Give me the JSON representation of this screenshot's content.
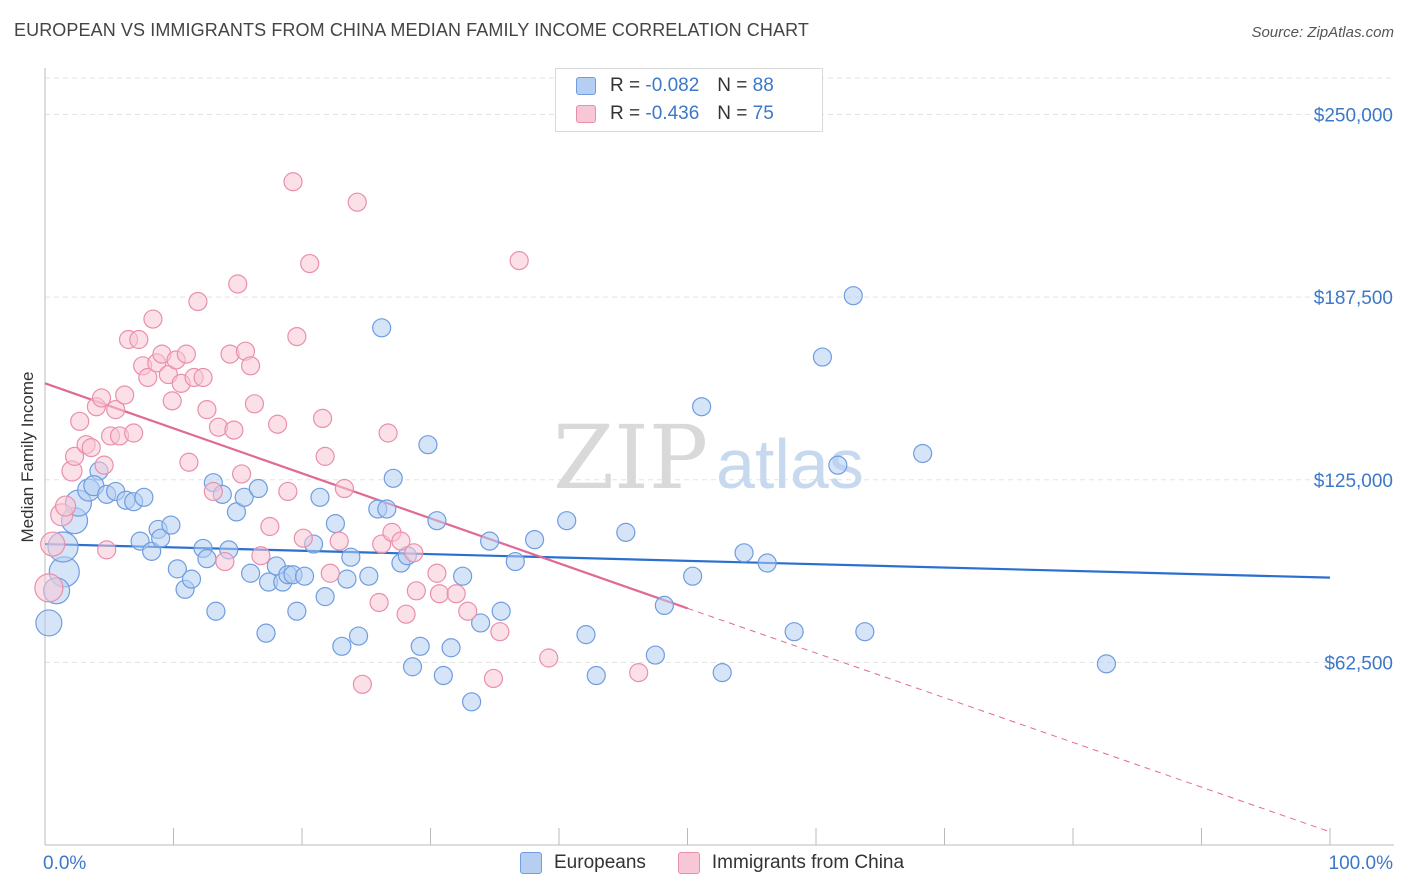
{
  "title": "EUROPEAN VS IMMIGRANTS FROM CHINA MEDIAN FAMILY INCOME CORRELATION CHART",
  "source": "Source: ZipAtlas.com",
  "watermark": {
    "zip": "ZIP",
    "atlas": "atlas"
  },
  "colors": {
    "blue": "#3c78c8",
    "blue_fill": "#b5cef2",
    "blue_stroke": "#6f9de0",
    "blue_line": "#2b6fcf",
    "pink": "#e2608f",
    "pink_fill": "#f8c7d6",
    "pink_stroke": "#ea8fab",
    "pink_line": "#e06a95",
    "grid": "#e3e3e3"
  },
  "legend": {
    "rows": [
      {
        "r_label": "R =",
        "r_value": "-0.082",
        "n_label": "N =",
        "n_value": "88"
      },
      {
        "r_label": "R =",
        "r_value": "-0.436",
        "n_label": "N =",
        "n_value": "75"
      }
    ]
  },
  "bottom_legend": {
    "europeans": "Europeans",
    "china": "Immigrants from China"
  },
  "chart_data": {
    "type": "scatter",
    "title": "EUROPEAN VS IMMIGRANTS FROM CHINA MEDIAN FAMILY INCOME CORRELATION CHART",
    "xlabel": "",
    "ylabel": "Median Family Income",
    "xlim": [
      0,
      100
    ],
    "ylim": [
      0,
      262500
    ],
    "x_tick_labels": [
      "0.0%",
      "100.0%"
    ],
    "y_ticks": [
      62500,
      125000,
      187500,
      250000
    ],
    "y_tick_labels": [
      "$62,500",
      "$125,000",
      "$187,500",
      "$250,000"
    ],
    "grid": true,
    "series": [
      {
        "name": "Europeans",
        "r": -0.082,
        "n": 88,
        "trend": {
          "x": [
            0,
            100
          ],
          "y": [
            103000,
            91500
          ],
          "dashed_from": 100
        },
        "points": [
          [
            0.3,
            76000,
            13
          ],
          [
            1.5,
            93500,
            15
          ],
          [
            1.4,
            102000,
            15
          ],
          [
            0.9,
            87000,
            13
          ],
          [
            2.3,
            111000,
            13
          ],
          [
            2.6,
            117000,
            13
          ],
          [
            3.4,
            121500,
            11
          ],
          [
            4.2,
            128000,
            9
          ],
          [
            3.8,
            123000,
            10
          ],
          [
            4.8,
            120000,
            9
          ],
          [
            5.5,
            121000,
            9
          ],
          [
            6.3,
            118000,
            9
          ],
          [
            6.9,
            117500,
            9
          ],
          [
            7.7,
            119000,
            9
          ],
          [
            7.4,
            104000,
            9
          ],
          [
            8.3,
            100500,
            9
          ],
          [
            8.8,
            108000,
            9
          ],
          [
            9.0,
            105000,
            9
          ],
          [
            9.8,
            109500,
            9
          ],
          [
            10.3,
            94500,
            9
          ],
          [
            10.9,
            87500,
            9
          ],
          [
            11.4,
            91000,
            9
          ],
          [
            12.3,
            101500,
            9
          ],
          [
            12.6,
            98000,
            9
          ],
          [
            13.1,
            124000,
            9
          ],
          [
            13.3,
            80000,
            9
          ],
          [
            13.8,
            120000,
            9
          ],
          [
            14.3,
            101000,
            9
          ],
          [
            14.9,
            114000,
            9
          ],
          [
            15.5,
            119000,
            9
          ],
          [
            16.0,
            93000,
            9
          ],
          [
            16.6,
            122000,
            9
          ],
          [
            17.2,
            72500,
            9
          ],
          [
            17.4,
            90000,
            9
          ],
          [
            18.0,
            95500,
            9
          ],
          [
            18.5,
            90000,
            9
          ],
          [
            18.9,
            92500,
            9
          ],
          [
            19.3,
            92500,
            9
          ],
          [
            19.6,
            80000,
            9
          ],
          [
            20.2,
            92000,
            9
          ],
          [
            20.9,
            103000,
            9
          ],
          [
            21.4,
            119000,
            9
          ],
          [
            21.8,
            85000,
            9
          ],
          [
            22.6,
            110000,
            9
          ],
          [
            23.1,
            68000,
            9
          ],
          [
            23.5,
            91000,
            9
          ],
          [
            23.8,
            98500,
            9
          ],
          [
            24.4,
            71500,
            9
          ],
          [
            25.2,
            92000,
            9
          ],
          [
            25.9,
            115000,
            9
          ],
          [
            26.2,
            177000,
            9
          ],
          [
            26.6,
            115000,
            9
          ],
          [
            27.1,
            125500,
            9
          ],
          [
            27.7,
            96500,
            9
          ],
          [
            28.2,
            99000,
            9
          ],
          [
            28.6,
            61000,
            9
          ],
          [
            29.2,
            68000,
            9
          ],
          [
            29.8,
            137000,
            9
          ],
          [
            30.5,
            111000,
            9
          ],
          [
            31.0,
            58000,
            9
          ],
          [
            31.6,
            67500,
            9
          ],
          [
            32.5,
            92000,
            9
          ],
          [
            33.2,
            49000,
            9
          ],
          [
            33.9,
            76000,
            9
          ],
          [
            34.6,
            104000,
            9
          ],
          [
            35.5,
            80000,
            9
          ],
          [
            36.6,
            97000,
            9
          ],
          [
            38.1,
            104500,
            9
          ],
          [
            40.6,
            111000,
            9
          ],
          [
            42.1,
            72000,
            9
          ],
          [
            42.9,
            58000,
            9
          ],
          [
            45.2,
            107000,
            9
          ],
          [
            47.5,
            65000,
            9
          ],
          [
            48.2,
            82000,
            9
          ],
          [
            50.4,
            92000,
            9
          ],
          [
            51.1,
            150000,
            9
          ],
          [
            52.7,
            59000,
            9
          ],
          [
            54.4,
            100000,
            9
          ],
          [
            56.2,
            96500,
            9
          ],
          [
            58.3,
            73000,
            9
          ],
          [
            60.5,
            167000,
            9
          ],
          [
            61.7,
            130000,
            9
          ],
          [
            62.9,
            188000,
            9
          ],
          [
            63.8,
            73000,
            9
          ],
          [
            68.3,
            134000,
            9
          ],
          [
            82.6,
            62000,
            9
          ]
        ]
      },
      {
        "name": "Immigrants from China",
        "r": -0.436,
        "n": 75,
        "trend": {
          "x": [
            0,
            50
          ],
          "y": [
            158000,
            81000
          ],
          "dashed_to": [
            100,
            4500
          ]
        },
        "points": [
          [
            0.3,
            88000,
            14
          ],
          [
            0.6,
            103000,
            12
          ],
          [
            1.3,
            113000,
            11
          ],
          [
            1.6,
            116000,
            10
          ],
          [
            2.1,
            128000,
            10
          ],
          [
            2.3,
            133000,
            9
          ],
          [
            2.7,
            145000,
            9
          ],
          [
            3.2,
            137000,
            9
          ],
          [
            3.6,
            136000,
            9
          ],
          [
            4.0,
            150000,
            9
          ],
          [
            4.4,
            153000,
            9
          ],
          [
            4.6,
            130000,
            9
          ],
          [
            4.8,
            101000,
            9
          ],
          [
            5.1,
            140000,
            9
          ],
          [
            5.5,
            149000,
            9
          ],
          [
            5.8,
            140000,
            9
          ],
          [
            6.2,
            154000,
            9
          ],
          [
            6.5,
            173000,
            9
          ],
          [
            6.9,
            141000,
            9
          ],
          [
            7.3,
            173000,
            9
          ],
          [
            7.6,
            164000,
            9
          ],
          [
            8.0,
            160000,
            9
          ],
          [
            8.4,
            180000,
            9
          ],
          [
            8.7,
            165000,
            9
          ],
          [
            9.1,
            168000,
            9
          ],
          [
            9.6,
            161000,
            9
          ],
          [
            9.9,
            152000,
            9
          ],
          [
            10.2,
            166000,
            9
          ],
          [
            10.6,
            158000,
            9
          ],
          [
            11.0,
            168000,
            9
          ],
          [
            11.2,
            131000,
            9
          ],
          [
            11.6,
            160000,
            9
          ],
          [
            11.9,
            186000,
            9
          ],
          [
            12.3,
            160000,
            9
          ],
          [
            12.6,
            149000,
            9
          ],
          [
            13.1,
            121000,
            9
          ],
          [
            13.5,
            143000,
            9
          ],
          [
            14.0,
            97000,
            9
          ],
          [
            14.4,
            168000,
            9
          ],
          [
            14.7,
            142000,
            9
          ],
          [
            15.0,
            192000,
            9
          ],
          [
            15.3,
            127000,
            9
          ],
          [
            15.6,
            169000,
            9
          ],
          [
            16.0,
            164000,
            9
          ],
          [
            16.3,
            151000,
            9
          ],
          [
            16.8,
            99000,
            9
          ],
          [
            17.5,
            109000,
            9
          ],
          [
            18.1,
            144000,
            9
          ],
          [
            18.9,
            121000,
            9
          ],
          [
            19.3,
            227000,
            9
          ],
          [
            19.6,
            174000,
            9
          ],
          [
            20.1,
            105000,
            9
          ],
          [
            20.6,
            199000,
            9
          ],
          [
            21.6,
            146000,
            9
          ],
          [
            21.8,
            133000,
            9
          ],
          [
            22.2,
            93000,
            9
          ],
          [
            22.9,
            104000,
            9
          ],
          [
            23.3,
            122000,
            9
          ],
          [
            24.3,
            220000,
            9
          ],
          [
            24.7,
            55000,
            9
          ],
          [
            26.0,
            83000,
            9
          ],
          [
            26.2,
            103000,
            9
          ],
          [
            26.7,
            141000,
            9
          ],
          [
            27.0,
            107000,
            9
          ],
          [
            27.7,
            104000,
            9
          ],
          [
            28.1,
            79000,
            9
          ],
          [
            28.7,
            100000,
            9
          ],
          [
            28.9,
            87000,
            9
          ],
          [
            30.5,
            93000,
            9
          ],
          [
            30.7,
            86000,
            9
          ],
          [
            32.0,
            86000,
            9
          ],
          [
            32.9,
            80000,
            9
          ],
          [
            34.9,
            57000,
            9
          ],
          [
            35.4,
            73000,
            9
          ],
          [
            36.9,
            200000,
            9
          ],
          [
            39.2,
            64000,
            9
          ],
          [
            46.2,
            59000,
            9
          ]
        ]
      }
    ]
  }
}
